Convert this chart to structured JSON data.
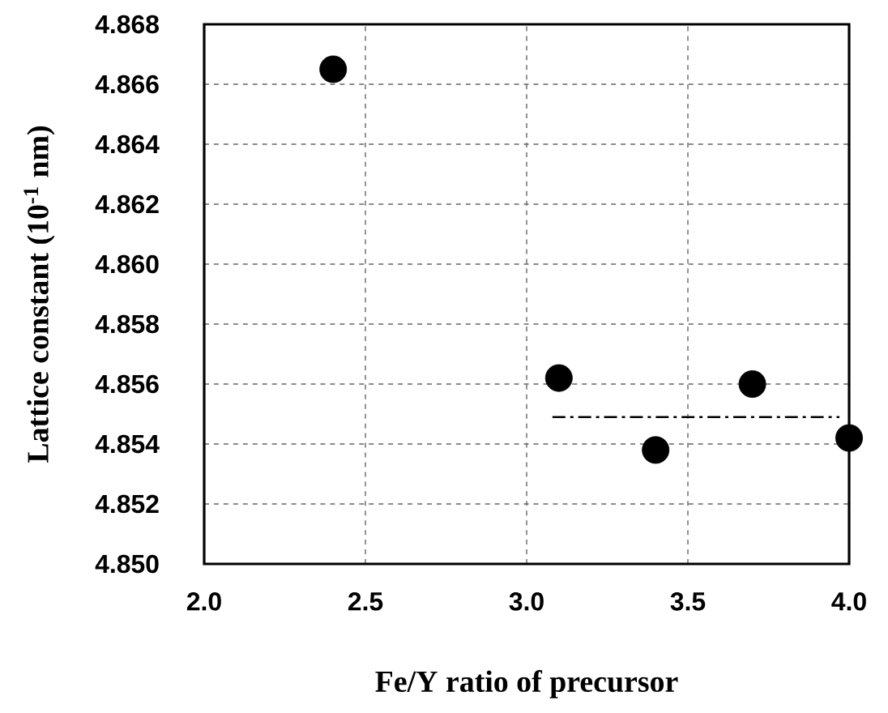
{
  "chart_data": {
    "type": "scatter",
    "xlabel": "Fe/Y ratio of precursor",
    "ylabel": "Lattice constant (10$^{-1}$ nm)",
    "x": [
      2.4,
      3.1,
      3.4,
      3.7,
      4.0
    ],
    "series": [
      {
        "color": "#000000",
        "marker": "circle",
        "values": [
          4.8665,
          4.8562,
          4.8538,
          4.856,
          4.8542
        ]
      },
      {
        "type": "line",
        "color": "#000000",
        "line_style": "dashdot",
        "marker": "none",
        "x": [
          3.08,
          3.97
        ],
        "values": [
          4.8549,
          4.8549
        ]
      }
    ],
    "xlim": [
      2.0,
      4.0
    ],
    "ylim": [
      4.85,
      4.868
    ],
    "xticks": [
      {
        "value": 2.0,
        "label": "2.0"
      },
      2.5,
      {
        "value": 3.0,
        "label": "3.0"
      },
      3.5,
      {
        "value": 4.0,
        "label": "4.0"
      }
    ],
    "yticks": [
      {
        "value": 4.85,
        "label": "4.850"
      },
      4.852,
      4.854,
      4.856,
      4.858,
      {
        "value": 4.86,
        "label": "4.860"
      },
      4.862,
      4.864,
      4.866,
      4.868
    ],
    "grid": true
  }
}
